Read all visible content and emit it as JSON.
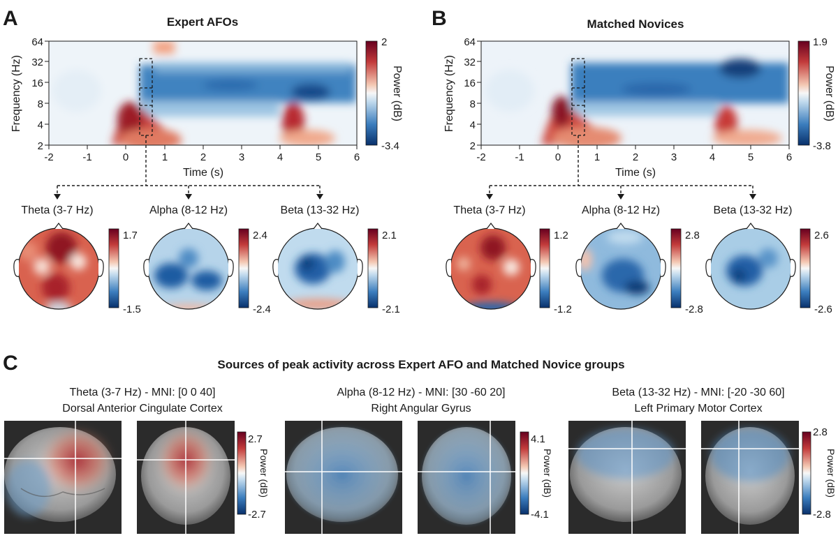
{
  "panels": {
    "A": {
      "letter": "A",
      "title": "Expert AFOs",
      "cbar_max": "2",
      "cbar_min": "-3.4",
      "topo_labels": [
        "Theta (3-7 Hz)",
        "Alpha (8-12 Hz)",
        "Beta (13-32 Hz)"
      ],
      "topo_max": [
        "1.7",
        "2.4",
        "2.1"
      ],
      "topo_min": [
        "-1.5",
        "-2.4",
        "-2.1"
      ]
    },
    "B": {
      "letter": "B",
      "title": "Matched Novices",
      "cbar_max": "1.9",
      "cbar_min": "-3.8",
      "topo_labels": [
        "Theta (3-7 Hz)",
        "Alpha (8-12 Hz)",
        "Beta (13-32 Hz)"
      ],
      "topo_max": [
        "1.2",
        "2.8",
        "2.6"
      ],
      "topo_min": [
        "-1.2",
        "-2.8",
        "-2.6"
      ]
    },
    "C": {
      "letter": "C",
      "title": "Sources of peak activity across Expert AFO and Matched Novice groups",
      "sources": [
        {
          "band": "Theta (3-7 Hz) - MNI: [0 0 40]",
          "region": "Dorsal Anterior Cingulate Cortex",
          "cbar_max": "2.7",
          "cbar_min": "-2.7"
        },
        {
          "band": "Alpha (8-12 Hz) - MNI: [30 -60 20]",
          "region": "Right Angular Gyrus",
          "cbar_max": "4.1",
          "cbar_min": "-4.1"
        },
        {
          "band": "Beta (13-32 Hz) - MNI: [-20 -30 60]",
          "region": "Left Primary Motor Cortex",
          "cbar_max": "2.8",
          "cbar_min": "-2.8"
        }
      ]
    }
  },
  "axes": {
    "y_label": "Frequency (Hz)",
    "x_label": "Time (s)",
    "y_ticks": [
      "64",
      "32",
      "16",
      "8",
      "4",
      "2"
    ],
    "x_ticks": [
      "-2",
      "-1",
      "0",
      "1",
      "2",
      "3",
      "4",
      "5",
      "6"
    ],
    "cbar_label": "Power (dB)"
  },
  "colors": {
    "red": "#b2182b",
    "white": "#f7f7f7",
    "blue": "#2166ac",
    "darkblue": "#053061",
    "darkred": "#67001f"
  }
}
